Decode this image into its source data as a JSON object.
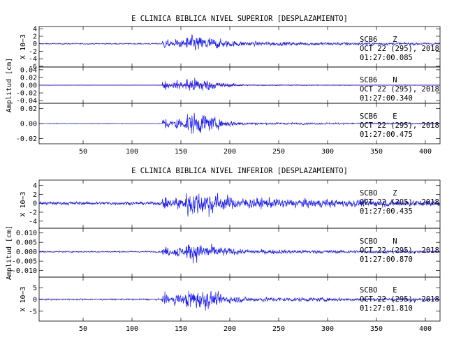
{
  "colors": {
    "trace": "#1a1aff",
    "frame": "#000000",
    "zero_line": "#d40000"
  },
  "x_axis": {
    "range": [
      5,
      415
    ],
    "ticks": [
      50,
      100,
      150,
      200,
      250,
      300,
      350,
      400
    ]
  },
  "panel_groups": [
    {
      "title": "E CLINICA BIBLICA NIVEL SUPERIOR [DESPLAZAMIENTO]",
      "ylabel": "Amplitud [cm]",
      "channels": [
        {
          "station": "SCB6",
          "component": "Z",
          "date": "OCT 22 (295), 2018",
          "time": "01:27:00.085",
          "multiplier": "X 10−3",
          "ylim": [
            -6.2,
            4.6
          ],
          "yticks": [
            -6,
            -4,
            -2,
            0,
            2,
            4
          ],
          "zero_line": false,
          "amp": 2.4,
          "pre": 0.07,
          "env": 0.2
        },
        {
          "station": "SCB6",
          "component": "N",
          "date": "OCT 22 (295), 2018",
          "time": "01:27:00.340",
          "multiplier": "",
          "ylim": [
            -0.047,
            0.047
          ],
          "yticks": [
            -0.04,
            -0.02,
            0.0,
            0.02,
            0.04
          ],
          "zero_line": true,
          "amp": 0.022,
          "pre": 0.02,
          "env": 0.05
        },
        {
          "station": "SCB6",
          "component": "E",
          "date": "OCT 22 (295), 2018",
          "time": "01:27:00.475",
          "multiplier": "",
          "ylim": [
            -0.027,
            0.027
          ],
          "yticks": [
            -0.02,
            0.0,
            0.02
          ],
          "zero_line": false,
          "amp": 0.016,
          "pre": 0.03,
          "env": 0.08
        }
      ]
    },
    {
      "title": "E CLINICA BIBLICA NIVEL INFERIOR [DESPLAZAMIENTO]",
      "ylabel": "Amplitud [cm]",
      "channels": [
        {
          "station": "SCBO",
          "component": "Z",
          "date": "OCT 22 (295), 2018",
          "time": "01:27:00.435",
          "multiplier": "X 10−3",
          "ylim": [
            -5.6,
            5.2
          ],
          "yticks": [
            -4,
            -2,
            0,
            2,
            4
          ],
          "zero_line": false,
          "amp": 3.2,
          "pre": 0.12,
          "env": 0.3
        },
        {
          "station": "SCBO",
          "component": "N",
          "date": "OCT 22 (295), 2018",
          "time": "01:27:00.870",
          "multiplier": "",
          "ylim": [
            -0.0135,
            0.0125
          ],
          "yticks": [
            -0.01,
            -0.005,
            0.0,
            0.005,
            0.01
          ],
          "zero_line": false,
          "amp": 0.0055,
          "pre": 0.07,
          "env": 0.18
        },
        {
          "station": "SCBO",
          "component": "E",
          "date": "OCT 22 (295), 2018",
          "time": "01:27:01.810",
          "multiplier": "X 10−3",
          "ylim": [
            -9.2,
            9.5
          ],
          "yticks": [
            -5,
            0,
            5
          ],
          "zero_line": false,
          "amp": 5.0,
          "pre": 0.07,
          "env": 0.16
        }
      ]
    }
  ],
  "chart_data": [
    {
      "type": "line",
      "title": "E CLINICA BIBLICA NIVEL SUPERIOR [DESPLAZAMIENTO]",
      "ylabel": "Amplitud [cm]",
      "xlim": [
        5,
        415
      ],
      "series": [
        {
          "name": "SCB6 Z"
        },
        {
          "name": "SCB6 N"
        },
        {
          "name": "SCB6 E"
        }
      ]
    },
    {
      "type": "line",
      "title": "E CLINICA BIBLICA NIVEL INFERIOR [DESPLAZAMIENTO]",
      "ylabel": "Amplitud [cm]",
      "xlim": [
        5,
        415
      ],
      "series": [
        {
          "name": "SCBO Z"
        },
        {
          "name": "SCBO N"
        },
        {
          "name": "SCBO E"
        }
      ]
    }
  ]
}
